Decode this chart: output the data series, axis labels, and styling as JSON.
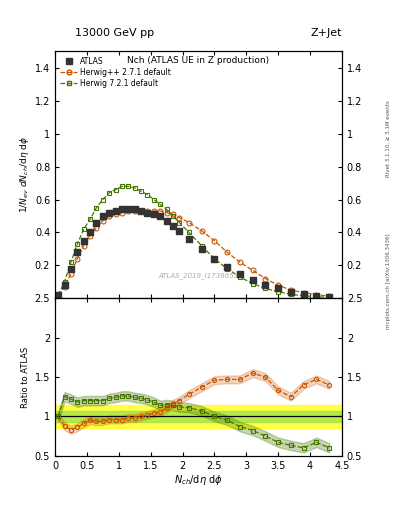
{
  "title_top": "13000 GeV pp",
  "title_right": "Z+Jet",
  "plot_title": "Nch (ATLAS UE in Z production)",
  "xlabel": "$N_{ch}$/d$\\eta$ d$\\phi$",
  "ylabel_main": "$1/N_{ev}$ $dN_{ch}$/d$\\eta$ d$\\phi$",
  "ylabel_ratio": "Ratio to ATLAS",
  "watermark": "ATLAS_2019_I1736653",
  "right_label": "Rivet 3.1.10, ≥ 3.1M events",
  "right_label2": "mcplots.cern.ch [arXiv:1306.3436]",
  "atlas_x": [
    0.05,
    0.15,
    0.25,
    0.35,
    0.45,
    0.55,
    0.65,
    0.75,
    0.85,
    0.95,
    1.05,
    1.15,
    1.25,
    1.35,
    1.45,
    1.55,
    1.65,
    1.75,
    1.85,
    1.95,
    2.1,
    2.3,
    2.5,
    2.7,
    2.9,
    3.1,
    3.3,
    3.5,
    3.7,
    3.9,
    4.1,
    4.3
  ],
  "atlas_y": [
    0.02,
    0.08,
    0.18,
    0.28,
    0.35,
    0.4,
    0.46,
    0.5,
    0.52,
    0.53,
    0.54,
    0.54,
    0.54,
    0.53,
    0.52,
    0.51,
    0.5,
    0.47,
    0.44,
    0.41,
    0.36,
    0.3,
    0.24,
    0.19,
    0.15,
    0.11,
    0.08,
    0.06,
    0.04,
    0.025,
    0.015,
    0.01
  ],
  "herwig_pp_x": [
    0.05,
    0.15,
    0.25,
    0.35,
    0.45,
    0.55,
    0.65,
    0.75,
    0.85,
    0.95,
    1.05,
    1.15,
    1.25,
    1.35,
    1.45,
    1.55,
    1.65,
    1.75,
    1.85,
    1.95,
    2.1,
    2.3,
    2.5,
    2.7,
    2.9,
    3.1,
    3.3,
    3.5,
    3.7,
    3.9,
    4.1,
    4.3
  ],
  "herwig_pp_y": [
    0.02,
    0.07,
    0.15,
    0.24,
    0.32,
    0.38,
    0.43,
    0.47,
    0.5,
    0.51,
    0.52,
    0.53,
    0.53,
    0.53,
    0.53,
    0.53,
    0.53,
    0.52,
    0.51,
    0.49,
    0.46,
    0.41,
    0.35,
    0.28,
    0.22,
    0.17,
    0.12,
    0.08,
    0.05,
    0.035,
    0.022,
    0.014
  ],
  "herwig7_x": [
    0.05,
    0.15,
    0.25,
    0.35,
    0.45,
    0.55,
    0.65,
    0.75,
    0.85,
    0.95,
    1.05,
    1.15,
    1.25,
    1.35,
    1.45,
    1.55,
    1.65,
    1.75,
    1.85,
    1.95,
    2.1,
    2.3,
    2.5,
    2.7,
    2.9,
    3.1,
    3.3,
    3.5,
    3.7,
    3.9,
    4.1,
    4.3
  ],
  "herwig7_y": [
    0.02,
    0.1,
    0.22,
    0.33,
    0.42,
    0.48,
    0.55,
    0.6,
    0.64,
    0.66,
    0.68,
    0.68,
    0.67,
    0.65,
    0.63,
    0.6,
    0.57,
    0.54,
    0.5,
    0.46,
    0.4,
    0.32,
    0.24,
    0.18,
    0.13,
    0.09,
    0.06,
    0.04,
    0.025,
    0.015,
    0.01,
    0.006
  ],
  "ratio_herwig_pp_y": [
    1.0,
    0.875,
    0.83,
    0.86,
    0.91,
    0.95,
    0.935,
    0.94,
    0.96,
    0.96,
    0.96,
    0.98,
    0.98,
    1.0,
    1.02,
    1.04,
    1.06,
    1.1,
    1.16,
    1.2,
    1.28,
    1.37,
    1.46,
    1.47,
    1.47,
    1.55,
    1.5,
    1.33,
    1.25,
    1.4,
    1.47,
    1.4
  ],
  "ratio_herwig7_y": [
    1.0,
    1.25,
    1.22,
    1.18,
    1.2,
    1.2,
    1.2,
    1.2,
    1.23,
    1.24,
    1.26,
    1.26,
    1.24,
    1.23,
    1.21,
    1.18,
    1.14,
    1.15,
    1.14,
    1.12,
    1.11,
    1.07,
    1.0,
    0.95,
    0.87,
    0.82,
    0.75,
    0.67,
    0.63,
    0.6,
    0.67,
    0.6
  ],
  "atlas_color": "#333333",
  "herwig_pp_color": "#cc5500",
  "herwig7_color": "#447700",
  "ylim_main": [
    0.0,
    1.5
  ],
  "ylim_ratio": [
    0.5,
    2.5
  ],
  "xlim": [
    0.0,
    4.5
  ],
  "yticks_main": [
    0.2,
    0.4,
    0.6,
    0.8,
    1.0,
    1.2,
    1.4
  ],
  "yticks_ratio": [
    0.5,
    1.0,
    1.5,
    2.0,
    2.5
  ],
  "xticks": [
    0.0,
    0.5,
    1.0,
    1.5,
    2.0,
    2.5,
    3.0,
    3.5,
    4.0,
    4.5
  ],
  "legend_labels": [
    "ATLAS",
    "Herwig++ 2.7.1 default",
    "Herwig 7.2.1 default"
  ],
  "band_yellow_lo": 0.85,
  "band_yellow_hi": 1.15,
  "band_green_lo": 0.93,
  "band_green_hi": 1.07
}
